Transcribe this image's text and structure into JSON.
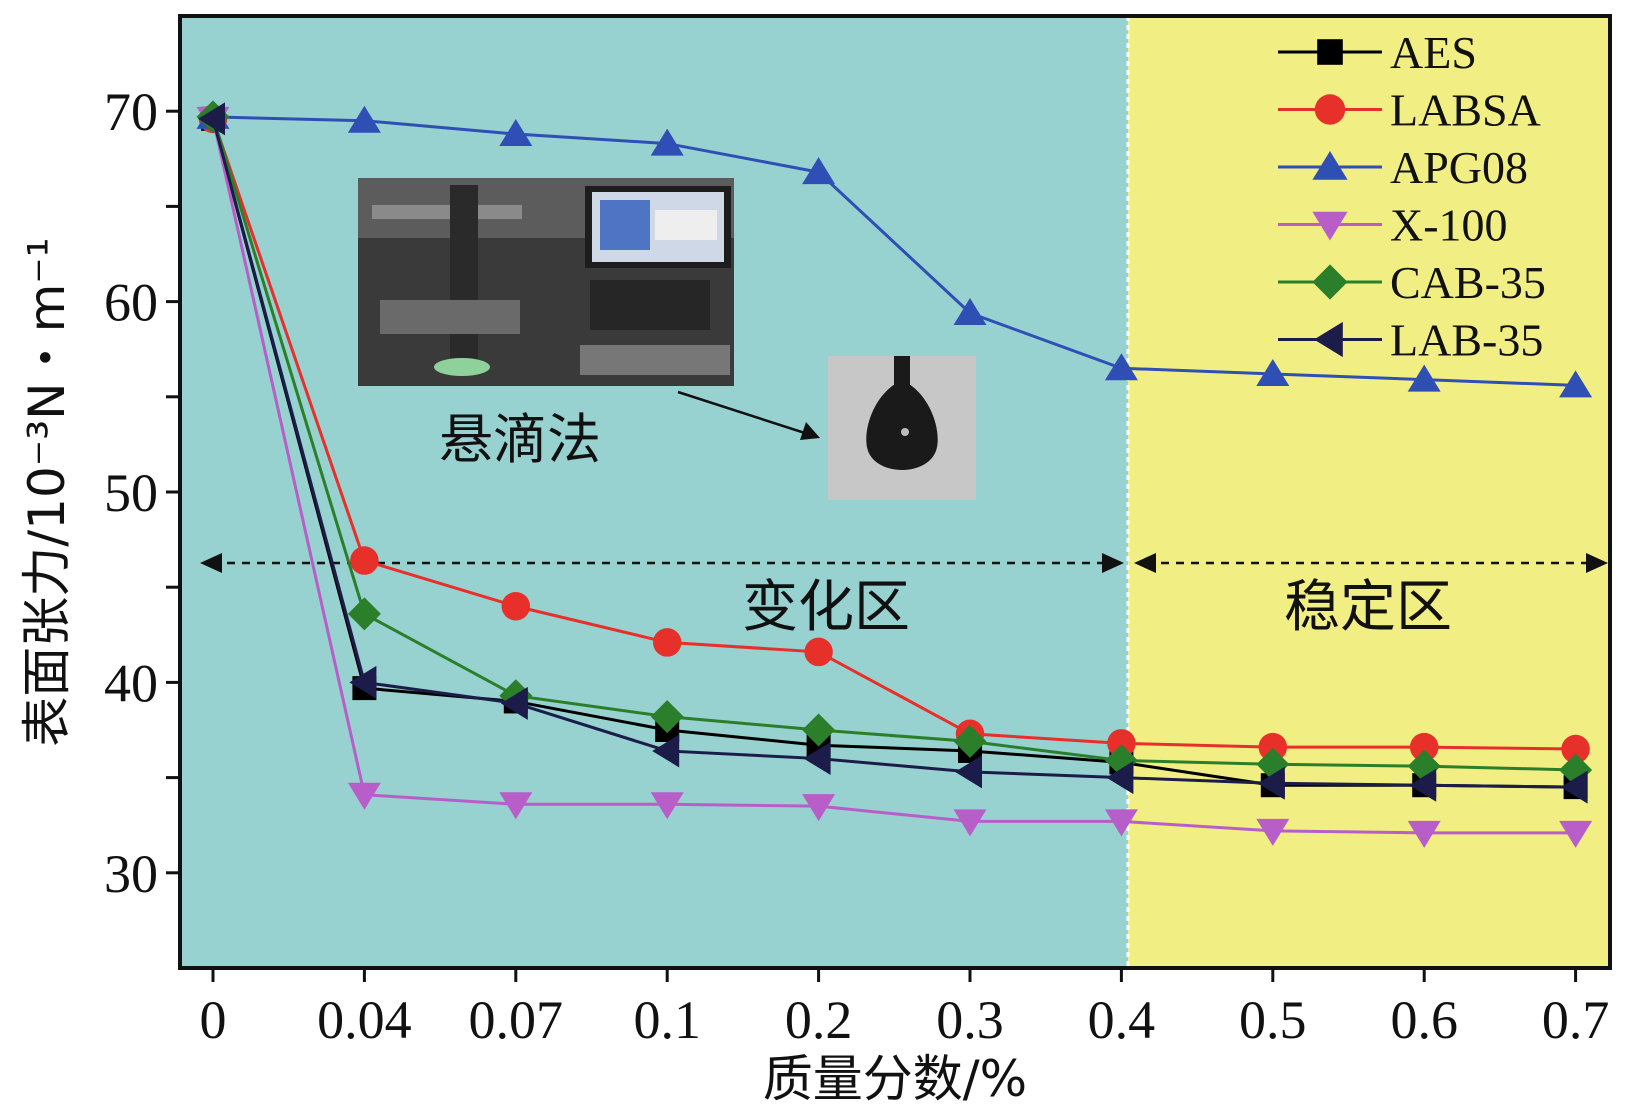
{
  "chart_data": {
    "type": "line",
    "title": "",
    "xlabel": "质量分数/%",
    "ylabel": "表面张力/10⁻³N・m⁻¹",
    "categories": [
      "0",
      "0.04",
      "0.07",
      "0.1",
      "0.2",
      "0.3",
      "0.4",
      "0.5",
      "0.6",
      "0.7"
    ],
    "ylim": [
      25,
      75
    ],
    "yticks": [
      30,
      40,
      50,
      60,
      70
    ],
    "grid": false,
    "legend_position": "top-right",
    "series": [
      {
        "name": "AES",
        "marker": "square",
        "color": "#000000",
        "values": [
          69.6,
          39.7,
          39.0,
          37.5,
          36.7,
          36.4,
          35.8,
          34.6,
          34.6,
          34.5
        ]
      },
      {
        "name": "LABSA",
        "marker": "circle",
        "color": "#e8302a",
        "values": [
          69.6,
          46.4,
          44.0,
          42.1,
          41.6,
          37.3,
          36.8,
          36.6,
          36.6,
          36.5
        ]
      },
      {
        "name": "APG08",
        "marker": "triangle-up",
        "color": "#2f4fb5",
        "values": [
          69.7,
          69.5,
          68.8,
          68.3,
          66.8,
          59.4,
          56.5,
          56.2,
          55.9,
          55.6
        ]
      },
      {
        "name": "X-100",
        "marker": "triangle-down",
        "color": "#b85ec9",
        "values": [
          69.6,
          34.1,
          33.6,
          33.6,
          33.5,
          32.7,
          32.7,
          32.2,
          32.1,
          32.1
        ]
      },
      {
        "name": "CAB-35",
        "marker": "diamond",
        "color": "#2b7f2a",
        "values": [
          69.7,
          43.6,
          39.3,
          38.2,
          37.5,
          36.9,
          35.9,
          35.7,
          35.6,
          35.4
        ]
      },
      {
        "name": "LAB-35",
        "marker": "triangle-left",
        "color": "#1c1c4a",
        "values": [
          69.6,
          40.0,
          38.9,
          36.4,
          36.0,
          35.3,
          35.0,
          34.7,
          34.6,
          34.5
        ]
      }
    ],
    "regions": [
      {
        "label": "变化区",
        "color": "#97d1d0",
        "from": "0",
        "to": "0.4"
      },
      {
        "label": "稳定区",
        "color": "#f1ef84",
        "from": "0.4",
        "to": "0.7"
      }
    ],
    "annotations": {
      "photo_label": "悬滴法"
    }
  }
}
